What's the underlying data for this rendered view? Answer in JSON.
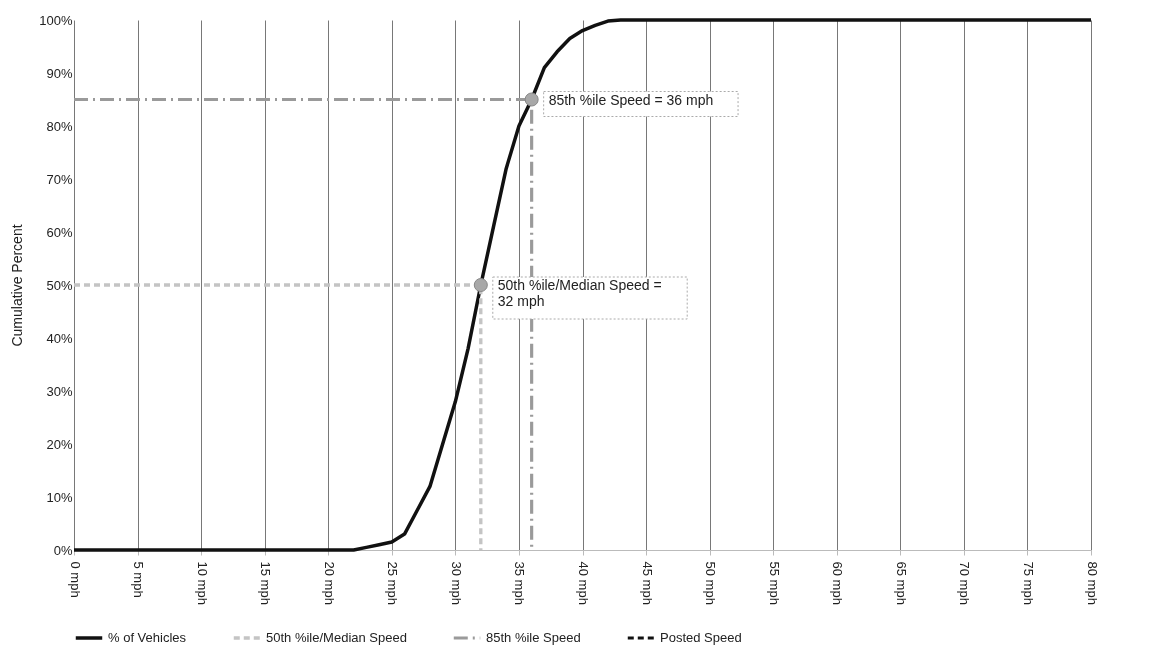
{
  "chart_data": {
    "type": "line",
    "ylabel": "Cumulative Percent",
    "x": [
      0,
      1,
      2,
      3,
      4,
      5,
      6,
      7,
      8,
      9,
      10,
      11,
      12,
      13,
      14,
      15,
      16,
      17,
      18,
      19,
      20,
      21,
      22,
      23,
      24,
      25,
      26,
      27,
      28,
      29,
      30,
      31,
      32,
      33,
      34,
      35,
      36,
      37,
      38,
      39,
      40,
      41,
      42,
      43,
      44,
      45,
      46,
      47,
      48,
      49,
      50,
      51,
      52,
      53,
      54,
      55,
      56,
      57,
      58,
      59,
      60,
      61,
      62,
      63,
      64,
      65,
      66,
      67,
      68,
      69,
      70,
      71,
      72,
      73,
      74,
      75,
      76,
      77,
      78,
      79,
      80
    ],
    "series": [
      {
        "name": "% of Vehicles",
        "color": "#111111",
        "line_style": "solid",
        "values": [
          0,
          0,
          0,
          0,
          0,
          0,
          0,
          0,
          0,
          0,
          0,
          0,
          0,
          0,
          0,
          0,
          0,
          0,
          0,
          0,
          0,
          0,
          0,
          0.5,
          1,
          1.5,
          3,
          7.5,
          12,
          20,
          28,
          38,
          50,
          61,
          72,
          80,
          85,
          91,
          94,
          96.5,
          98,
          99,
          99.8,
          100,
          100,
          100,
          100,
          100,
          100,
          100,
          100,
          100,
          100,
          100,
          100,
          100,
          100,
          100,
          100,
          100,
          100,
          100,
          100,
          100,
          100,
          100,
          100,
          100,
          100,
          100,
          100,
          100,
          100,
          100,
          100,
          100,
          100,
          100,
          100,
          100,
          100
        ]
      },
      {
        "name": "50th %ile/Median Speed",
        "color": "#c4c4c4",
        "line_style": "dashed",
        "x": [
          0,
          32,
          32
        ],
        "values": [
          50,
          50,
          0
        ]
      },
      {
        "name": "85th %ile Speed",
        "color": "#9a9a9a",
        "line_style": "dashdot",
        "x": [
          0,
          36,
          36
        ],
        "values": [
          85,
          85,
          0
        ]
      },
      {
        "name": "Posted Speed",
        "color": "#111111",
        "line_style": "dashed",
        "values": [
          null,
          null,
          null,
          null,
          null,
          null,
          null,
          null,
          null,
          null,
          null,
          null,
          null,
          null,
          null,
          null,
          null,
          null,
          null,
          null,
          null,
          null,
          null,
          null,
          null,
          null,
          null,
          null,
          null,
          null,
          null,
          null,
          null,
          null,
          null,
          null,
          null,
          null,
          null,
          null,
          null,
          null,
          null,
          null,
          null,
          null,
          null,
          null,
          null,
          null,
          null,
          null,
          null,
          null,
          null,
          null,
          null,
          null,
          null,
          null,
          null,
          null,
          null,
          null,
          null,
          null,
          null,
          null,
          null,
          null,
          null,
          null,
          null,
          null,
          null,
          null,
          null,
          null,
          null,
          null,
          null
        ]
      }
    ],
    "xlim": [
      0,
      80
    ],
    "xticks": [
      {
        "value": 0,
        "label": "0 mph"
      },
      {
        "value": 5,
        "label": "5 mph"
      },
      {
        "value": 10,
        "label": "10 mph"
      },
      {
        "value": 15,
        "label": "15 mph"
      },
      {
        "value": 20,
        "label": "20 mph"
      },
      {
        "value": 25,
        "label": "25 mph"
      },
      {
        "value": 30,
        "label": "30 mph"
      },
      {
        "value": 35,
        "label": "35 mph"
      },
      {
        "value": 40,
        "label": "40 mph"
      },
      {
        "value": 45,
        "label": "45 mph"
      },
      {
        "value": 50,
        "label": "50 mph"
      },
      {
        "value": 55,
        "label": "55 mph"
      },
      {
        "value": 60,
        "label": "60 mph"
      },
      {
        "value": 65,
        "label": "65 mph"
      },
      {
        "value": 70,
        "label": "70 mph"
      },
      {
        "value": 75,
        "label": "75 mph"
      },
      {
        "value": 80,
        "label": "80 mph"
      }
    ],
    "ylim": [
      0,
      100
    ],
    "yticks": [
      {
        "value": 0,
        "label": "0%"
      },
      {
        "value": 10,
        "label": "10%"
      },
      {
        "value": 20,
        "label": "20%"
      },
      {
        "value": 30,
        "label": "30%"
      },
      {
        "value": 40,
        "label": "40%"
      },
      {
        "value": 50,
        "label": "50%"
      },
      {
        "value": 60,
        "label": "60%"
      },
      {
        "value": 70,
        "label": "70%"
      },
      {
        "value": 80,
        "label": "80%"
      },
      {
        "value": 90,
        "label": "90%"
      },
      {
        "value": 100,
        "label": "100%"
      }
    ],
    "grid": "x",
    "legend": "bottom",
    "annotations": [
      {
        "text": "85th %ile Speed = 36 mph",
        "x": 36,
        "y": 85
      },
      {
        "text": "50th %ile/Median Speed =\n32 mph",
        "x": 32,
        "y": 50
      }
    ]
  }
}
